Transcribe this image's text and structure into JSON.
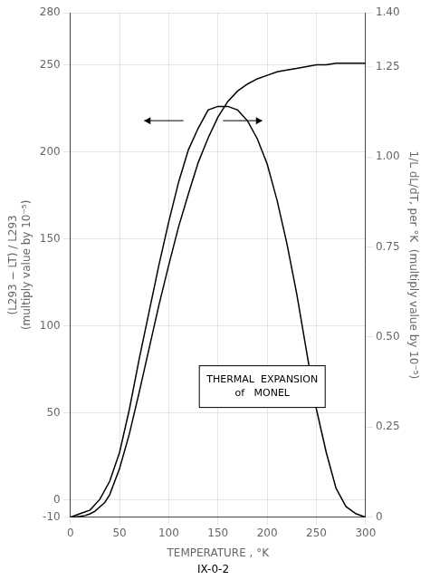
{
  "chart_data": {
    "type": "line",
    "xlabel": "TEMPERATURE , °K",
    "ylabel": [
      "(L293 − LT) / L293",
      "(multiply value by 10⁻⁵)"
    ],
    "y2label": "1/L dL/dT, per °K  (multiply value by 10⁻⁵)",
    "annotations": [
      "THERMAL  EXPANSION\nof   MONEL"
    ],
    "footnote": "IX-0-2",
    "xlim": [
      0,
      300
    ],
    "xticks": [
      0,
      50,
      100,
      150,
      200,
      250,
      300
    ],
    "ylim": [
      -10,
      280
    ],
    "yticks": [
      -10,
      0,
      50,
      100,
      150,
      200,
      250,
      280
    ],
    "y2lim": [
      0.0,
      1.4
    ],
    "y2ticks": [
      0,
      0.25,
      {
        "value": 0.5,
        "label": "0.50"
      },
      {
        "value": 0.75,
        "label": "0.75"
      },
      {
        "value": 1.0,
        "label": "1.00"
      },
      1.25,
      {
        "value": 1.4,
        "label": "1.40"
      }
    ],
    "grid": true,
    "series": [
      {
        "color": "#000000",
        "x": [
          0,
          5,
          10,
          15,
          20,
          25,
          30,
          35,
          40,
          50,
          60,
          70,
          80,
          90,
          100,
          110,
          120,
          130,
          140,
          150,
          160,
          170,
          180,
          190,
          200,
          210,
          220,
          230,
          240,
          250,
          260,
          270,
          280,
          290,
          300
        ],
        "values": [
          -10,
          -9.8,
          -9.5,
          -9.0,
          -8.0,
          -6.5,
          -4.0,
          -1.5,
          3,
          18,
          38,
          62,
          87,
          112,
          135,
          157,
          176,
          194,
          208,
          220,
          229,
          235,
          239,
          242,
          244,
          246,
          247,
          248,
          249,
          250,
          250,
          251,
          251,
          251,
          251
        ]
      },
      {
        "color": "#000000",
        "axis": "y2",
        "x": [
          0,
          10,
          20,
          30,
          40,
          50,
          60,
          70,
          80,
          90,
          100,
          110,
          120,
          130,
          140,
          150,
          160,
          170,
          180,
          190,
          200,
          210,
          220,
          230,
          240,
          250,
          260,
          270,
          280,
          290,
          300
        ],
        "values": [
          0.0,
          0.01,
          0.02,
          0.05,
          0.1,
          0.18,
          0.3,
          0.44,
          0.57,
          0.7,
          0.82,
          0.93,
          1.02,
          1.08,
          1.13,
          1.14,
          1.14,
          1.13,
          1.1,
          1.05,
          0.98,
          0.88,
          0.76,
          0.62,
          0.46,
          0.3,
          0.18,
          0.08,
          0.03,
          0.01,
          0.0
        ]
      }
    ]
  }
}
